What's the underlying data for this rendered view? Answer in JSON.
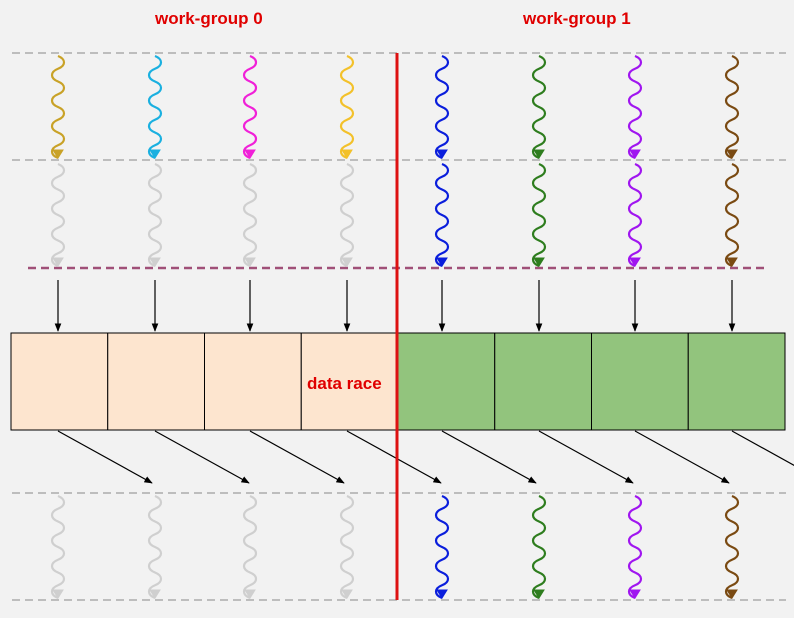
{
  "labels": {
    "work_group_0": "work-group 0",
    "work_group_1": "work-group 1",
    "data_race": "data race"
  },
  "colors": {
    "background": "#f2f2f2",
    "label": "#e00000",
    "divider": "#dd1111",
    "separator": "#bdbdbd",
    "barrier": "#a05078",
    "faded_thread": "#cfcfcf",
    "wg0_cell": "#fde5cf",
    "wg1_cell": "#92c47d",
    "arrow": "#000000"
  },
  "work_groups": [
    {
      "name": "work-group 0",
      "thread_colors": [
        "#c9a227",
        "#1ab0e0",
        "#f020d8",
        "#f3c12a"
      ],
      "phase2_active": false,
      "phase3_active": false
    },
    {
      "name": "work-group 1",
      "thread_colors": [
        "#0a1edc",
        "#2e7d1e",
        "#a015f0",
        "#7a4a12"
      ],
      "phase2_active": true,
      "phase3_active": true
    }
  ],
  "memory_cells": 8,
  "data_race_cell_index": 3
}
